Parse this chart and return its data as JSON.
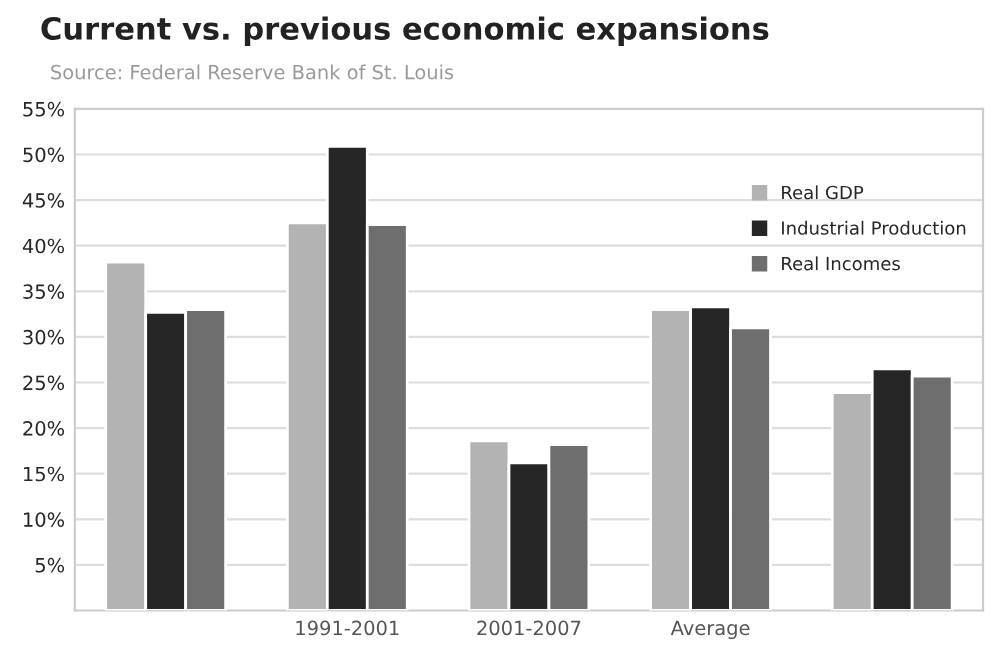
{
  "chart_data": {
    "type": "bar",
    "title": "Current vs. previous economic expansions",
    "subtitle": "Source: Federal Reserve Bank of St. Louis",
    "categories": [
      null,
      "1991-2001",
      "2001-2007",
      "Average",
      null
    ],
    "series": [
      {
        "name": "Real GDP",
        "color": "#b3b3b3",
        "values": [
          38.2,
          42.5,
          18.6,
          33.0,
          23.9
        ]
      },
      {
        "name": "Industrial Production",
        "color": "#262626",
        "values": [
          32.7,
          50.9,
          16.2,
          33.3,
          26.5
        ]
      },
      {
        "name": "Real Incomes",
        "color": "#6e6e6e",
        "values": [
          33.0,
          42.3,
          18.2,
          31.0,
          25.7
        ]
      }
    ],
    "ylim": [
      0,
      55
    ],
    "yticks": [
      {
        "value": 5,
        "label": "5%"
      },
      {
        "value": 10,
        "label": "10%"
      },
      {
        "value": 15,
        "label": "15%"
      },
      {
        "value": 20,
        "label": "20%"
      },
      {
        "value": 25,
        "label": "25%"
      },
      {
        "value": 30,
        "label": "30%"
      },
      {
        "value": 35,
        "label": "35%"
      },
      {
        "value": 40,
        "label": "40%"
      },
      {
        "value": 45,
        "label": "45%"
      },
      {
        "value": 50,
        "label": "50%"
      },
      {
        "value": 55,
        "label": "55%"
      }
    ],
    "grid": "y",
    "legend": "top right"
  }
}
